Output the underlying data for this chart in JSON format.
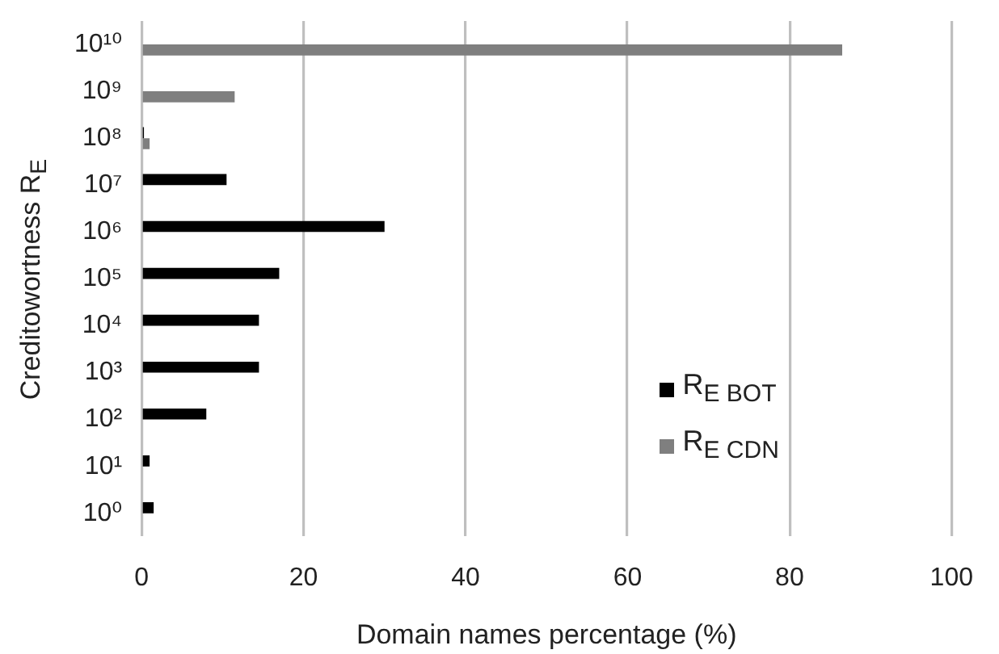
{
  "chart_data": {
    "type": "bar",
    "orientation": "horizontal",
    "xlabel": "Domain names percentage (%)",
    "ylabel": "Creditowortness R$_{E}$",
    "categories": [
      "10¹⁰",
      "10⁹",
      "10⁸",
      "10⁷",
      "10⁶",
      "10⁵",
      "10⁴",
      "10³",
      "10²",
      "10¹",
      "10⁰"
    ],
    "series": [
      {
        "name": "R$_{E BOT}$",
        "color": "#000000",
        "values": [
          null,
          null,
          0.3,
          10.5,
          30,
          17,
          14.5,
          14.5,
          8,
          1,
          1.5
        ]
      },
      {
        "name": "R$_{E CDN}$",
        "color": "#7f7f7f",
        "values": [
          86.5,
          11.5,
          1,
          null,
          null,
          null,
          null,
          null,
          null,
          null,
          null
        ]
      }
    ],
    "xlim": [
      0,
      100
    ],
    "xticks": [
      0,
      20,
      40,
      60,
      80,
      100
    ],
    "grid": "x",
    "legend": "bottom right"
  }
}
